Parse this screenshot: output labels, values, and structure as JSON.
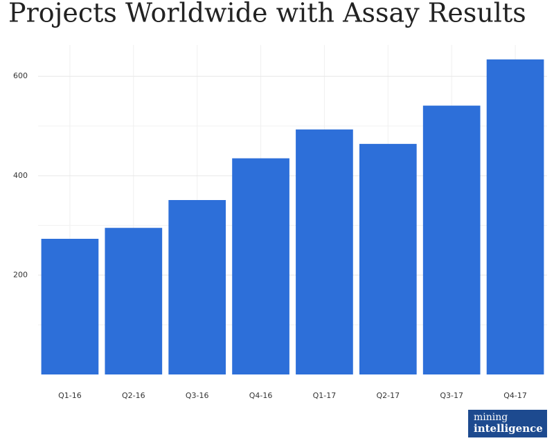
{
  "chart_data": {
    "type": "bar",
    "title": "Projects Worldwide with Assay Results",
    "categories": [
      "Q1-16",
      "Q2-16",
      "Q3-16",
      "Q4-16",
      "Q1-17",
      "Q2-17",
      "Q3-17",
      "Q4-17"
    ],
    "values": [
      273,
      295,
      351,
      435,
      493,
      464,
      541,
      634
    ],
    "color": "#2d6fd9",
    "ylim": [
      0,
      663
    ],
    "yticks": [
      200,
      400,
      600
    ],
    "minor_yticks": [
      100,
      300,
      500
    ],
    "grid": true
  },
  "logo": {
    "line1": "mining",
    "line2": "intelligence"
  }
}
